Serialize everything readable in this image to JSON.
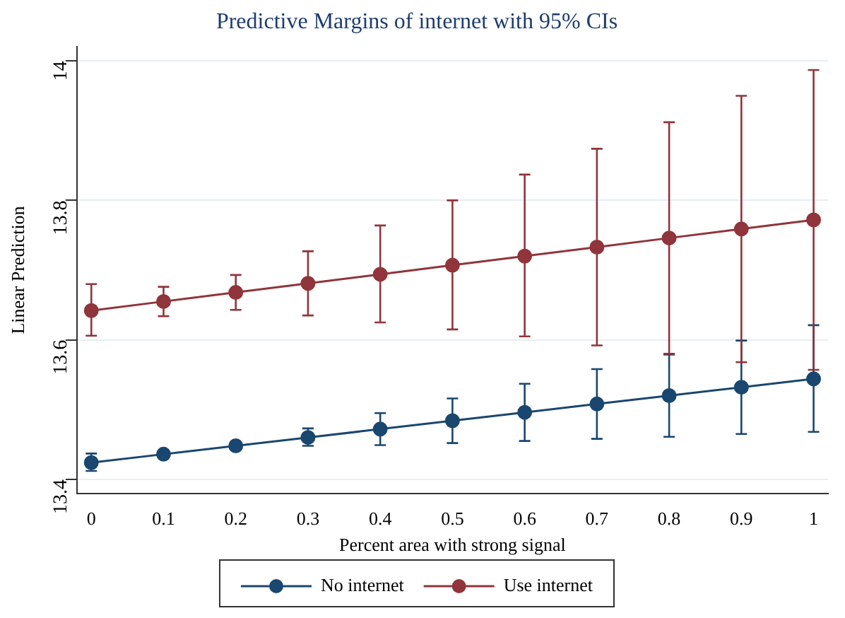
{
  "chart_data": {
    "type": "line",
    "title": "Predictive Margins of internet with 95% CIs",
    "xlabel": "Percent area with strong signal",
    "ylabel": "Linear Prediction",
    "x": [
      0,
      0.1,
      0.2,
      0.3,
      0.4,
      0.5,
      0.6,
      0.7,
      0.8,
      0.9,
      1
    ],
    "series": [
      {
        "name": "No internet",
        "color": "#1a476f",
        "values": [
          13.424,
          13.436,
          13.448,
          13.46,
          13.472,
          13.484,
          13.496,
          13.508,
          13.52,
          13.532,
          13.544
        ],
        "errors": [
          [
            13.412,
            13.437
          ],
          [
            13.432,
            13.44
          ],
          [
            13.443,
            13.453
          ],
          [
            13.448,
            13.473
          ],
          [
            13.449,
            13.495
          ],
          [
            13.452,
            13.516
          ],
          [
            13.455,
            13.537
          ],
          [
            13.458,
            13.558
          ],
          [
            13.461,
            13.579
          ],
          [
            13.465,
            13.599
          ],
          [
            13.468,
            13.621
          ]
        ]
      },
      {
        "name": "Use internet",
        "color": "#90353b",
        "values": [
          13.642,
          13.655,
          13.668,
          13.681,
          13.694,
          13.707,
          13.72,
          13.733,
          13.746,
          13.759,
          13.772
        ],
        "errors": [
          [
            13.606,
            13.68
          ],
          [
            13.634,
            13.676
          ],
          [
            13.643,
            13.693
          ],
          [
            13.635,
            13.727
          ],
          [
            13.625,
            13.764
          ],
          [
            13.615,
            13.8
          ],
          [
            13.605,
            13.837
          ],
          [
            13.592,
            13.874
          ],
          [
            13.58,
            13.912
          ],
          [
            13.568,
            13.95
          ],
          [
            13.557,
            13.987
          ]
        ]
      }
    ],
    "xlim": [
      -0.02,
      1.02
    ],
    "xticks": [
      0,
      0.1,
      0.2,
      0.3,
      0.4,
      0.5,
      0.6,
      0.7,
      0.8,
      0.9,
      1
    ],
    "ylim": [
      13.38,
      14.02
    ],
    "yticks": [
      13.4,
      13.6,
      13.8,
      14
    ],
    "grid": "y",
    "legend": "bottom",
    "marker": "circle",
    "line_style": "solid"
  }
}
